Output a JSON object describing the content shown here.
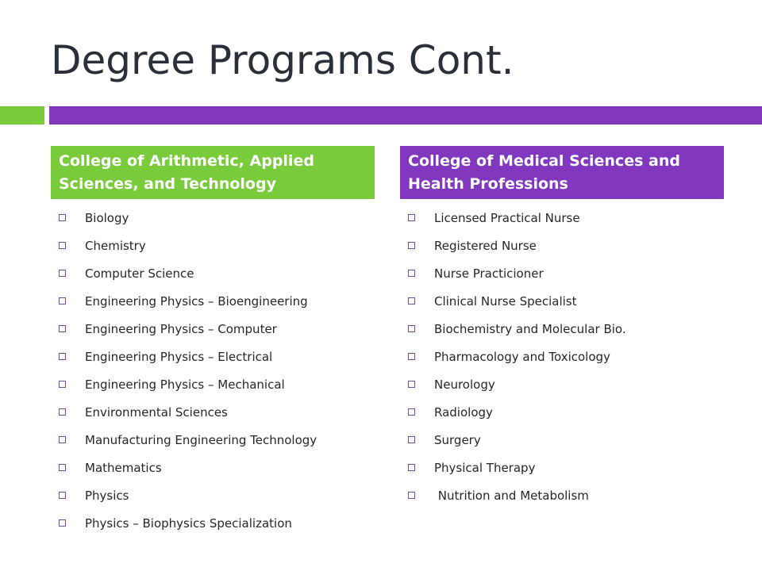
{
  "slide": {
    "title": "Degree Programs Cont."
  },
  "left_column": {
    "header": "College of Arithmetic, Applied Sciences, and Technology",
    "items": [
      "Biology",
      "Chemistry",
      "Computer Science",
      "Engineering Physics – Bioengineering",
      "Engineering Physics – Computer",
      "Engineering Physics – Electrical",
      "Engineering Physics – Mechanical",
      "Environmental Sciences",
      "Manufacturing Engineering Technology",
      "Mathematics",
      "Physics",
      "Physics – Biophysics Specialization"
    ]
  },
  "right_column": {
    "header": "College of Medical Sciences and Health Professions",
    "items": [
      "Licensed Practical Nurse",
      "Registered Nurse",
      "Nurse Practicioner",
      "Clinical Nurse Specialist",
      "Biochemistry and Molecular Bio.",
      "Pharmacology and Toxicology",
      "Neurology",
      "Radiology",
      "Surgery",
      "Physical Therapy",
      " Nutrition and Metabolism"
    ]
  },
  "colors": {
    "green_accent": "#7acb3c",
    "purple_accent": "#8237bf",
    "title_text": "#2b2f3a"
  },
  "icons": {
    "bullet": "square-bullet-icon"
  }
}
